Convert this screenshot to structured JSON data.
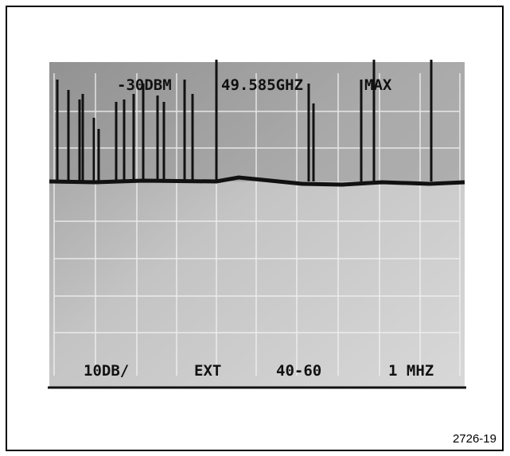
{
  "screen": {
    "top_readouts": [
      "-30DBM",
      "49.585GHZ",
      "MAX"
    ],
    "bottom_readouts": [
      "10DB/",
      "EXT",
      "40-60",
      "1 MHZ"
    ]
  },
  "figure_number": "2726-19"
}
